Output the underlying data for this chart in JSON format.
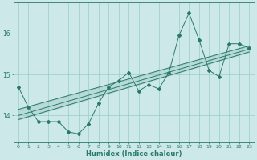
{
  "xlabel": "Humidex (Indice chaleur)",
  "bg_color": "#cce8e8",
  "line_color": "#2a7a6a",
  "grid_color": "#99cccc",
  "text_color": "#2a7a6a",
  "xlim": [
    -0.5,
    23.5
  ],
  "ylim": [
    13.35,
    16.75
  ],
  "yticks": [
    14,
    15,
    16
  ],
  "xticks": [
    0,
    1,
    2,
    3,
    4,
    5,
    6,
    7,
    8,
    9,
    10,
    11,
    12,
    13,
    14,
    15,
    16,
    17,
    18,
    19,
    20,
    21,
    22,
    23
  ],
  "x_data": [
    0,
    1,
    2,
    3,
    4,
    5,
    6,
    7,
    8,
    9,
    10,
    11,
    12,
    13,
    14,
    15,
    16,
    17,
    18,
    19,
    20,
    21,
    22,
    23
  ],
  "y_data": [
    14.7,
    14.2,
    13.85,
    13.85,
    13.85,
    13.6,
    13.55,
    13.8,
    14.3,
    14.7,
    14.85,
    15.05,
    14.6,
    14.75,
    14.65,
    15.05,
    15.95,
    16.5,
    15.85,
    15.1,
    14.95,
    15.75,
    15.75,
    15.65
  ],
  "trend1_start": 13.9,
  "trend1_end": 15.55,
  "trend2_start": 14.15,
  "trend2_end": 15.7,
  "trend3_start": 14.0,
  "trend3_end": 15.62
}
